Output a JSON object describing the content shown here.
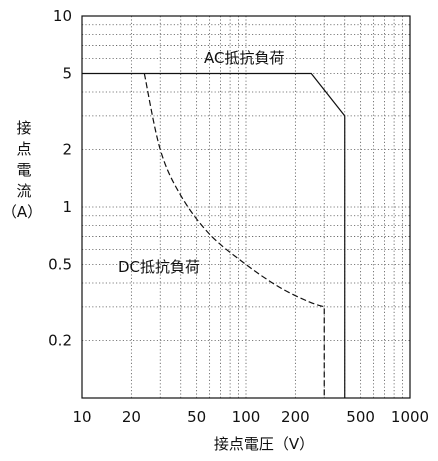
{
  "chart_data": {
    "type": "line",
    "xscale": "log",
    "yscale": "log",
    "xlim": [
      10,
      1000
    ],
    "ylim": [
      0.1,
      10
    ],
    "xticks": [
      10,
      20,
      50,
      100,
      200,
      500,
      1000
    ],
    "xtick_labels": [
      "10",
      "20",
      "50",
      "100",
      "200",
      "500",
      "1000"
    ],
    "yticks": [
      0.2,
      0.5,
      1,
      2,
      5,
      10
    ],
    "ytick_labels": [
      "0.2",
      "0.5",
      "1",
      "2",
      "5",
      "10"
    ],
    "xlabel": "接点電圧（V）",
    "ylabel": [
      "接",
      "点",
      "電",
      "流",
      "（A）"
    ],
    "grid": true,
    "series": [
      {
        "name": "AC抵抗負荷",
        "style": "solid",
        "x": [
          10,
          250,
          400,
          400
        ],
        "y": [
          5,
          5,
          3,
          0.1
        ]
      },
      {
        "name": "DC抵抗負荷",
        "style": "dashed",
        "x": [
          24,
          30,
          40,
          60,
          100,
          160,
          240,
          300,
          300
        ],
        "y": [
          5,
          2.0,
          1.15,
          0.72,
          0.5,
          0.38,
          0.32,
          0.3,
          0.1
        ]
      }
    ],
    "annotations": [
      "AC抵抗負荷",
      "DC抵抗負荷"
    ]
  }
}
